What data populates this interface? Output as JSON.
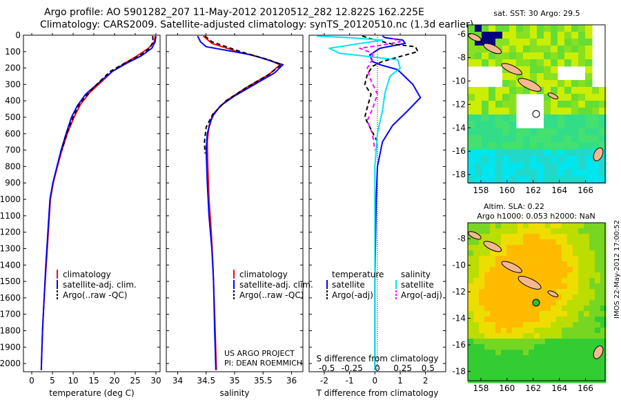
{
  "header": {
    "title_line1": "Argo profile: AO 5901282_207 11-May-2012 20120512_282 12.822S 162.225E",
    "title_line2": "Climatology: CARS2009. Satellite-adjusted climatology: synTS_20120510.nc (1.3d earlier)"
  },
  "credits": {
    "project": "US ARGO PROJECT",
    "pi": "PI: DEAN ROEMMICH",
    "stamp": "IMOS 22-May-2012 17:00:52"
  },
  "colors": {
    "climatology": "#ff0000",
    "satellite": "#0000ff",
    "argo": "#000000",
    "satellite_salinity": "#00e5ee",
    "argo_salinity": "#ff00ff"
  },
  "chart_data": [
    {
      "type": "line",
      "name": "temperature-profile",
      "xlabel": "temperature (deg C)",
      "ylabel": "",
      "xlim": [
        -2,
        31
      ],
      "ylim": [
        2050,
        0
      ],
      "xticks": [
        0,
        5,
        10,
        15,
        20,
        25,
        30
      ],
      "yticks": [
        0,
        100,
        200,
        300,
        400,
        500,
        600,
        700,
        800,
        900,
        1000,
        1100,
        1200,
        1300,
        1400,
        1500,
        1600,
        1700,
        1800,
        1900,
        2000
      ],
      "legend": [
        "climatology",
        "satellite-adj. clim.",
        "Argo(..raw -QC)"
      ],
      "series": [
        {
          "name": "climatology",
          "color": "#ff0000",
          "style": "solid",
          "points": [
            [
              29.8,
              5
            ],
            [
              29.6,
              40
            ],
            [
              28.2,
              80
            ],
            [
              25.5,
              125
            ],
            [
              22.5,
              170
            ],
            [
              19.5,
              220
            ],
            [
              17,
              280
            ],
            [
              14,
              350
            ],
            [
              11.8,
              420
            ],
            [
              10.2,
              500
            ],
            [
              8.6,
              600
            ],
            [
              7.3,
              700
            ],
            [
              6.2,
              800
            ],
            [
              5.2,
              900
            ],
            [
              4.5,
              1000
            ],
            [
              4,
              1200
            ],
            [
              3.5,
              1400
            ],
            [
              3.0,
              1600
            ],
            [
              2.6,
              1800
            ],
            [
              2.3,
              2040
            ]
          ]
        },
        {
          "name": "satellite-adj. clim.",
          "color": "#0000ff",
          "style": "solid",
          "points": [
            [
              30,
              5
            ],
            [
              29.8,
              40
            ],
            [
              29,
              80
            ],
            [
              26.5,
              125
            ],
            [
              23,
              170
            ],
            [
              19.5,
              220
            ],
            [
              16.2,
              290
            ],
            [
              13,
              360
            ],
            [
              11,
              430
            ],
            [
              9.6,
              500
            ],
            [
              8.3,
              600
            ],
            [
              7.1,
              700
            ],
            [
              6.1,
              800
            ],
            [
              5.1,
              900
            ],
            [
              4.4,
              1000
            ],
            [
              3.9,
              1200
            ],
            [
              3.4,
              1400
            ],
            [
              3.0,
              1600
            ],
            [
              2.6,
              1800
            ],
            [
              2.3,
              2040
            ]
          ]
        },
        {
          "name": "Argo(..raw -QC)",
          "color": "#000000",
          "style": "dashed",
          "points": [
            [
              29.2,
              5
            ],
            [
              29.3,
              40
            ],
            [
              28.5,
              80
            ],
            [
              26,
              125
            ],
            [
              22.5,
              170
            ],
            [
              19,
              220
            ],
            [
              16.5,
              280
            ],
            [
              13.8,
              350
            ],
            [
              11.5,
              420
            ],
            [
              10,
              500
            ],
            [
              8.4,
              600
            ],
            [
              7.3,
              700
            ]
          ]
        }
      ]
    },
    {
      "type": "line",
      "name": "salinity-profile",
      "xlabel": "salinity",
      "ylabel": "",
      "xlim": [
        33.8,
        36.2
      ],
      "ylim": [
        2050,
        0
      ],
      "xticks": [
        34,
        34.5,
        35,
        35.5,
        36
      ],
      "legend": [
        "climatology",
        "satellite-adj. clim.",
        "Argo(..raw -QC)"
      ],
      "series": [
        {
          "name": "climatology",
          "color": "#ff0000",
          "style": "solid",
          "points": [
            [
              34.45,
              5
            ],
            [
              34.6,
              50
            ],
            [
              35.05,
              100
            ],
            [
              35.55,
              145
            ],
            [
              35.8,
              180
            ],
            [
              35.6,
              240
            ],
            [
              35.2,
              320
            ],
            [
              34.85,
              400
            ],
            [
              34.65,
              470
            ],
            [
              34.55,
              550
            ],
            [
              34.52,
              650
            ],
            [
              34.53,
              800
            ],
            [
              34.55,
              1000
            ],
            [
              34.59,
              1200
            ],
            [
              34.62,
              1400
            ],
            [
              34.65,
              1700
            ],
            [
              34.68,
              2040
            ]
          ]
        },
        {
          "name": "satellite-adj. clim.",
          "color": "#0000ff",
          "style": "solid",
          "points": [
            [
              34.35,
              5
            ],
            [
              34.4,
              40
            ],
            [
              34.5,
              70
            ],
            [
              35.3,
              120
            ],
            [
              35.85,
              180
            ],
            [
              35.7,
              230
            ],
            [
              35.35,
              300
            ],
            [
              35.0,
              370
            ],
            [
              34.75,
              430
            ],
            [
              34.6,
              500
            ],
            [
              34.52,
              600
            ],
            [
              34.5,
              700
            ],
            [
              34.52,
              900
            ],
            [
              34.55,
              1100
            ],
            [
              34.6,
              1300
            ],
            [
              34.63,
              1500
            ],
            [
              34.65,
              1800
            ],
            [
              34.67,
              2040
            ]
          ]
        },
        {
          "name": "Argo(..raw -QC)",
          "color": "#000000",
          "style": "dashed",
          "points": [
            [
              34.48,
              5
            ],
            [
              34.6,
              40
            ],
            [
              35.1,
              100
            ],
            [
              35.6,
              150
            ],
            [
              35.82,
              180
            ],
            [
              35.6,
              240
            ],
            [
              35.2,
              320
            ],
            [
              34.85,
              400
            ],
            [
              34.62,
              480
            ],
            [
              34.5,
              560
            ],
            [
              34.47,
              650
            ],
            [
              34.48,
              720
            ]
          ]
        }
      ]
    },
    {
      "type": "line",
      "name": "difference-profile",
      "xlabel": "T difference from climatology",
      "xlabel2": "S difference from climatology",
      "xlim": [
        -2.6,
        2.8
      ],
      "xticks": [
        -2,
        -1,
        0,
        1,
        2
      ],
      "xticks_s": [
        -0.5,
        -0.25,
        0,
        0.25,
        0.5
      ],
      "legend_heads": [
        "temperature",
        "salinity"
      ],
      "legend": [
        "satellite",
        "Argo(-adj)",
        "satellite",
        "Argo(-adj)"
      ],
      "series": [
        {
          "name": "temperature satellite",
          "color": "#0000ff",
          "style": "solid",
          "points": [
            [
              0.3,
              5
            ],
            [
              0.4,
              15
            ],
            [
              1.1,
              30
            ],
            [
              1.2,
              50
            ],
            [
              0.2,
              80
            ],
            [
              -0.2,
              120
            ],
            [
              -0.1,
              160
            ],
            [
              0.2,
              180
            ],
            [
              0.9,
              210
            ],
            [
              1.5,
              300
            ],
            [
              1.8,
              380
            ],
            [
              1.3,
              460
            ],
            [
              0.7,
              550
            ],
            [
              0.3,
              650
            ],
            [
              0.1,
              800
            ],
            [
              0.05,
              1000
            ],
            [
              0,
              1500
            ],
            [
              0,
              2040
            ]
          ]
        },
        {
          "name": "temperature Argo(-adj)",
          "color": "#000000",
          "style": "dashed",
          "points": [
            [
              -0.5,
              5
            ],
            [
              -0.2,
              20
            ],
            [
              0.7,
              55
            ],
            [
              1.6,
              70
            ],
            [
              1.7,
              100
            ],
            [
              1.0,
              130
            ],
            [
              0.3,
              160
            ],
            [
              -0.1,
              190
            ],
            [
              -0.3,
              240
            ],
            [
              -0.4,
              300
            ],
            [
              -0.15,
              360
            ],
            [
              -0.3,
              440
            ],
            [
              -0.4,
              500
            ],
            [
              -0.2,
              560
            ],
            [
              0.1,
              650
            ],
            [
              0.05,
              700
            ]
          ]
        },
        {
          "name": "salinity satellite",
          "color": "#00e5ee",
          "style": "solid",
          "points": [
            [
              -2.3,
              5
            ],
            [
              -1.0,
              15
            ],
            [
              0.3,
              30
            ],
            [
              -1.8,
              80
            ],
            [
              -1.4,
              110
            ],
            [
              0.9,
              150
            ],
            [
              1.0,
              200
            ],
            [
              0.6,
              250
            ],
            [
              0.4,
              350
            ],
            [
              0.3,
              460
            ],
            [
              0.1,
              600
            ],
            [
              0,
              800
            ],
            [
              0,
              1000
            ],
            [
              0,
              2040
            ]
          ]
        },
        {
          "name": "salinity Argo(-adj)",
          "color": "#ff00ff",
          "style": "dashed",
          "points": [
            [
              0.7,
              20
            ],
            [
              1.0,
              40
            ],
            [
              0.3,
              60
            ],
            [
              -0.6,
              80
            ],
            [
              -0.1,
              110
            ],
            [
              -0.1,
              150
            ],
            [
              -0.3,
              200
            ],
            [
              -0.2,
              260
            ],
            [
              0.1,
              360
            ],
            [
              -0.1,
              450
            ],
            [
              -0.3,
              520
            ],
            [
              -0.1,
              600
            ],
            [
              0,
              700
            ]
          ]
        }
      ]
    },
    {
      "type": "heatmap",
      "name": "sst-map",
      "title": "sat. SST: 30 Argo: 29.5",
      "xlim": [
        157,
        167.5
      ],
      "ylim": [
        -18.7,
        -5.2
      ],
      "xticks": [
        158,
        160,
        162,
        164,
        166
      ],
      "yticks": [
        -6,
        -8,
        -10,
        -12,
        -14,
        -16,
        -18
      ],
      "argo_position": [
        162.225,
        -12.822
      ],
      "palette": [
        "#00e5ee",
        "#33dd88",
        "#77e033",
        "#ccee00"
      ]
    },
    {
      "type": "heatmap",
      "name": "sla-map",
      "title_line1": "Altim. SLA: 0.22",
      "title_line2": "Argo h1000: 0.053 h2000: NaN",
      "xlim": [
        157,
        167.5
      ],
      "ylim": [
        -18.7,
        -6.8
      ],
      "xticks": [
        158,
        160,
        162,
        164,
        166
      ],
      "yticks": [
        -8,
        -10,
        -12,
        -14,
        -16,
        -18
      ],
      "argo_position": [
        162.225,
        -12.822
      ],
      "palette": [
        "#22cc22",
        "#99dd00",
        "#eeee00",
        "#ffbb00"
      ]
    }
  ]
}
